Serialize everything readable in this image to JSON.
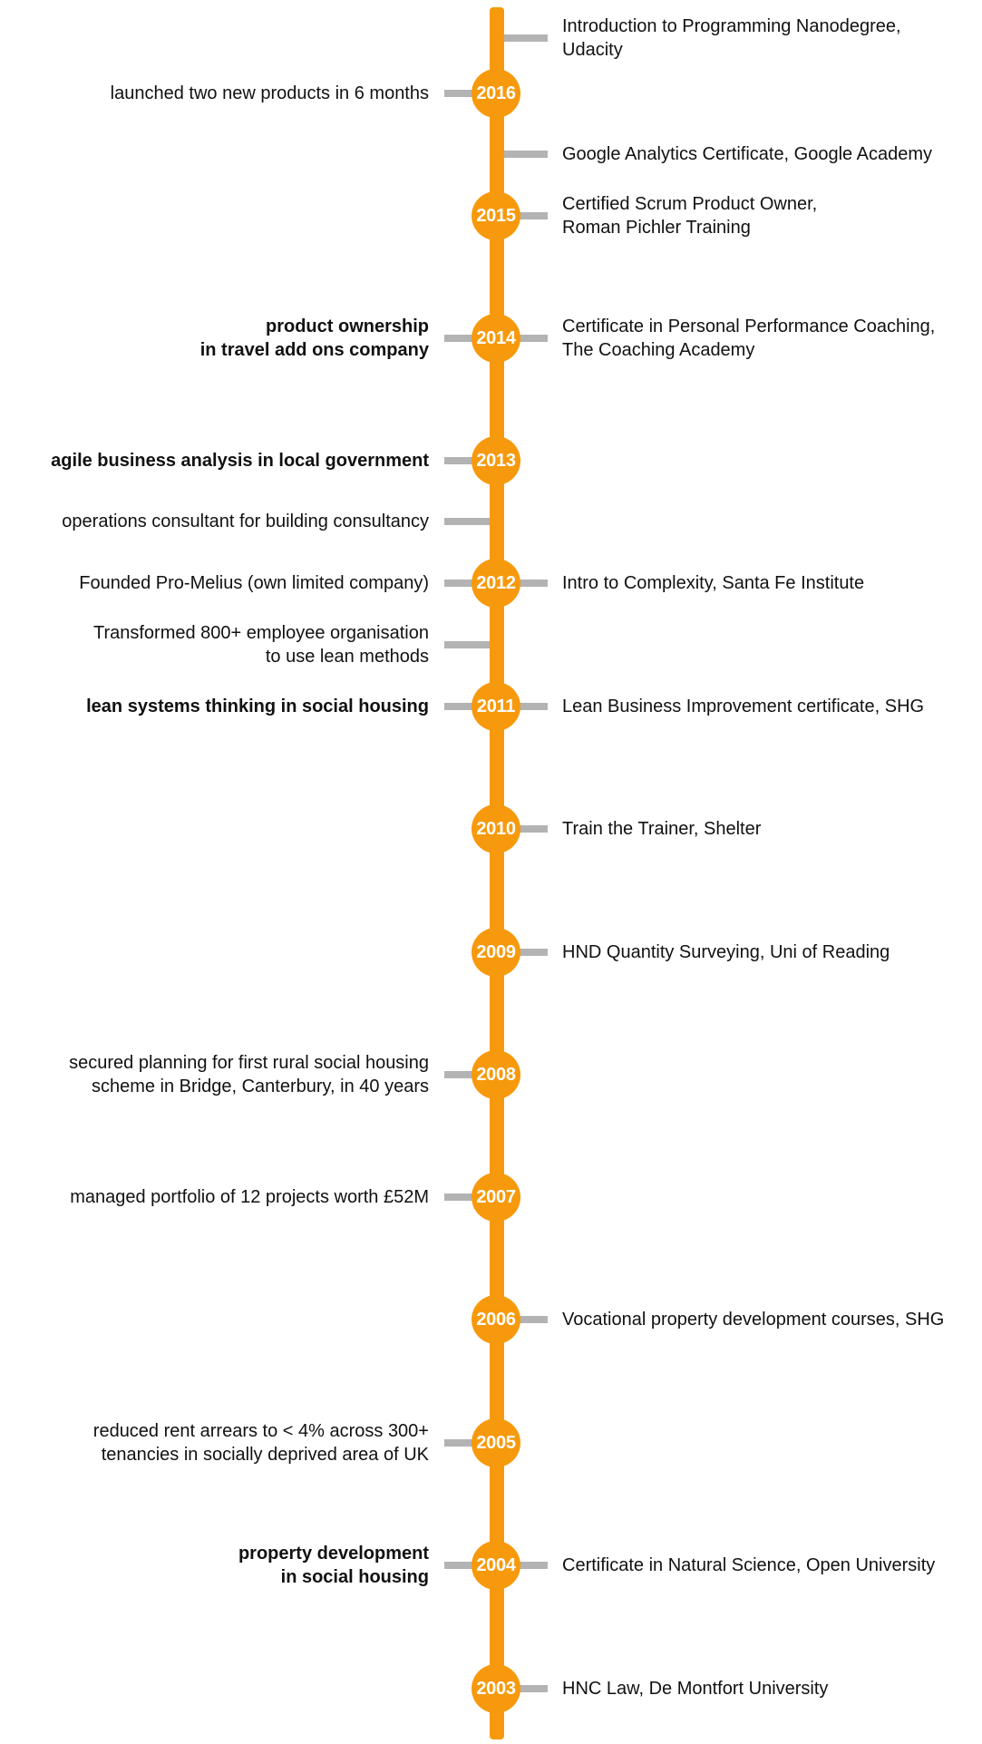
{
  "colors": {
    "spine": "#f7990c",
    "node": "#f7990c",
    "connector": "#b3b3b3",
    "year_text": "#ffffff",
    "text": "#111111"
  },
  "years": [
    "2016",
    "2015",
    "2014",
    "2013",
    "2012",
    "2011",
    "2010",
    "2009",
    "2008",
    "2007",
    "2006",
    "2005",
    "2004",
    "2003"
  ],
  "left_entries": [
    {
      "lines": [
        "launched two new products in 6 months"
      ],
      "bold": false
    },
    {
      "lines": [
        "product ownership",
        "in travel add ons company"
      ],
      "bold": true
    },
    {
      "lines": [
        "agile business analysis in local government"
      ],
      "bold": true
    },
    {
      "lines": [
        "operations consultant for building consultancy"
      ],
      "bold": false
    },
    {
      "lines": [
        "Founded Pro-Melius (own limited company)"
      ],
      "bold": false
    },
    {
      "lines": [
        "Transformed 800+ employee organisation",
        "to use lean methods"
      ],
      "bold": false
    },
    {
      "lines": [
        "lean systems thinking in social housing"
      ],
      "bold": true
    },
    {
      "lines": [
        "secured planning for first rural social housing",
        "scheme in Bridge, Canterbury, in 40 years"
      ],
      "bold": false
    },
    {
      "lines": [
        "managed portfolio of 12 projects worth £52M"
      ],
      "bold": false
    },
    {
      "lines": [
        "reduced rent arrears to < 4% across 300+",
        "tenancies in socially deprived area of UK"
      ],
      "bold": false
    },
    {
      "lines": [
        "property development",
        "in social housing"
      ],
      "bold": true
    }
  ],
  "right_entries": [
    {
      "lines": [
        "Introduction to Programming Nanodegree,",
        "Udacity"
      ]
    },
    {
      "lines": [
        "Google Analytics Certificate, Google Academy"
      ]
    },
    {
      "lines": [
        "Certified Scrum Product Owner,",
        "Roman Pichler Training"
      ]
    },
    {
      "lines": [
        "Certificate in Personal Performance Coaching,",
        "The Coaching Academy"
      ]
    },
    {
      "lines": [
        "Intro to Complexity, Santa Fe Institute"
      ]
    },
    {
      "lines": [
        "Lean Business Improvement certificate, SHG"
      ]
    },
    {
      "lines": [
        "Train the Trainer, Shelter"
      ]
    },
    {
      "lines": [
        "HND Quantity Surveying, Uni of Reading"
      ]
    },
    {
      "lines": [
        "Vocational property development courses, SHG"
      ]
    },
    {
      "lines": [
        "Certificate in Natural Science, Open University"
      ]
    },
    {
      "lines": [
        "HNC Law, De Montfort University"
      ]
    }
  ]
}
